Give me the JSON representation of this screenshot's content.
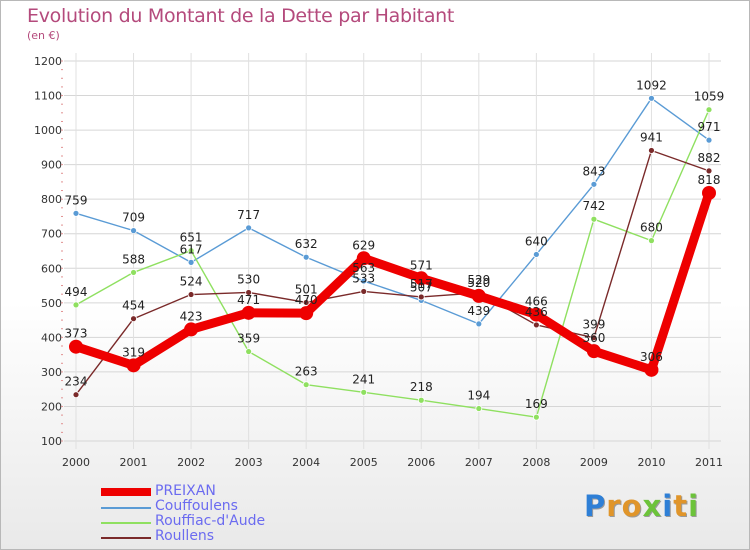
{
  "header": {
    "title": "Evolution du Montant de la Dette par Habitant",
    "subtitle": "(en €)"
  },
  "logo": {
    "text": "Proxiti"
  },
  "chart_data": {
    "type": "line",
    "title": "Evolution du Montant de la Dette par Habitant",
    "subtitle": "(en €)",
    "xlabel": "",
    "ylabel": "",
    "x": [
      "2000",
      "2001",
      "2002",
      "2003",
      "2004",
      "2005",
      "2006",
      "2007",
      "2008",
      "2009",
      "2010",
      "2011"
    ],
    "ylim": [
      100,
      1200
    ],
    "yticks": [
      100,
      200,
      300,
      400,
      500,
      600,
      700,
      800,
      900,
      1000,
      1100,
      1200
    ],
    "grid": true,
    "legend_position": "bottom-left",
    "series": [
      {
        "name": "PREIXAN",
        "color": "#ee0000",
        "values": [
          373,
          319,
          423,
          471,
          470,
          629,
          571,
          520,
          466,
          360,
          306,
          818
        ]
      },
      {
        "name": "Couffoulens",
        "color": "#5a9bd5",
        "values": [
          759,
          709,
          617,
          717,
          632,
          563,
          507,
          439,
          640,
          843,
          1092,
          971
        ]
      },
      {
        "name": "Rouffiac-d'Aude",
        "color": "#8fe060",
        "values": [
          494,
          588,
          651,
          359,
          263,
          241,
          218,
          194,
          169,
          742,
          680,
          1059
        ]
      },
      {
        "name": "Roullens",
        "color": "#7a2a2a",
        "values": [
          234,
          454,
          524,
          530,
          501,
          533,
          517,
          529,
          436,
          399,
          941,
          882
        ]
      }
    ]
  }
}
